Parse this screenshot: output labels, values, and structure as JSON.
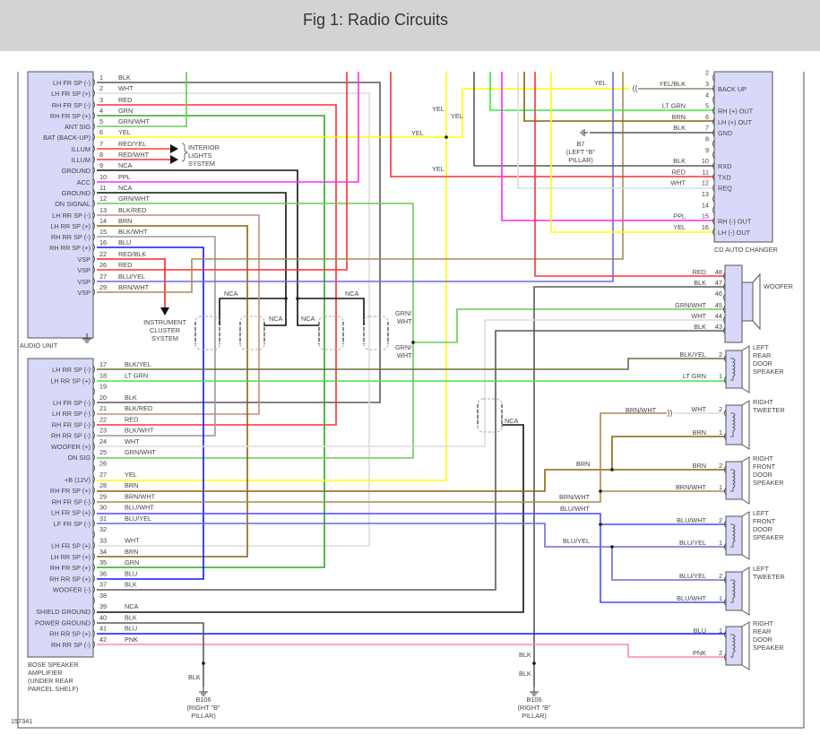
{
  "header": {
    "title": "Fig 1: Radio Circuits"
  },
  "figure_id": "157341",
  "audio_unit": {
    "label": "AUDIO UNIT",
    "pins": [
      {
        "num": "1",
        "name": "LH FR SP (-)",
        "color": "BLK"
      },
      {
        "num": "2",
        "name": "LH FR SP (+)",
        "color": "WHT"
      },
      {
        "num": "3",
        "name": "RH FR SP (-)",
        "color": "RED"
      },
      {
        "num": "4",
        "name": "RH FR SP (+)",
        "color": "GRN"
      },
      {
        "num": "5",
        "name": "ANT SIG",
        "color": "GRN/WHT"
      },
      {
        "num": "6",
        "name": "BAT (BACK-UP)",
        "color": "YEL"
      },
      {
        "num": "7",
        "name": "ILLUM",
        "color": "RED/YEL"
      },
      {
        "num": "8",
        "name": "ILLUM",
        "color": "RED/WHT"
      },
      {
        "num": "9",
        "name": "GROUND",
        "color": "NCA"
      },
      {
        "num": "10",
        "name": "ACC",
        "color": "PPL"
      },
      {
        "num": "11",
        "name": "GROUND",
        "color": "NCA"
      },
      {
        "num": "12",
        "name": "ON SIGNAL",
        "color": "GRN/WHT"
      },
      {
        "num": "13",
        "name": "LH RR SP (-)",
        "color": "BLK/RED"
      },
      {
        "num": "14",
        "name": "LH RR SP (+)",
        "color": "BRN"
      },
      {
        "num": "15",
        "name": "RH RR SP (-)",
        "color": "BLK/WHT"
      },
      {
        "num": "16",
        "name": "RH RR SP (+)",
        "color": "BLU"
      },
      {
        "num": "22",
        "name": "VSP",
        "color": "RED/BLK"
      },
      {
        "num": "26",
        "name": "VSP",
        "color": "RED"
      },
      {
        "num": "27",
        "name": "VSP",
        "color": "BLU/YEL"
      },
      {
        "num": "29",
        "name": "VSP",
        "color": "BRN/WHT"
      }
    ]
  },
  "amplifier": {
    "label_lines": [
      "BOSE SPEAKER",
      "AMPLIFIER",
      "(UNDER REAR",
      "PARCEL SHELF)"
    ],
    "pins": [
      {
        "num": "17",
        "name": "LH RR SP (-)",
        "color": "BLK/YEL"
      },
      {
        "num": "18",
        "name": "LH RR SP (+)",
        "color": "LT GRN"
      },
      {
        "num": "19",
        "name": "",
        "color": ""
      },
      {
        "num": "20",
        "name": "LH FR SP (-)",
        "color": "BLK"
      },
      {
        "num": "21",
        "name": "LH RR SP (-)",
        "color": "BLK/RED"
      },
      {
        "num": "22",
        "name": "RH FR SP (-)",
        "color": "RED"
      },
      {
        "num": "23",
        "name": "RH RR SP (-)",
        "color": "BLK/WHT"
      },
      {
        "num": "24",
        "name": "WOOFER (+)",
        "color": "WHT"
      },
      {
        "num": "25",
        "name": "ON SIG",
        "color": "GRN/WHT"
      },
      {
        "num": "26",
        "name": "",
        "color": ""
      },
      {
        "num": "27",
        "name": "+B (12V)",
        "color": "YEL"
      },
      {
        "num": "28",
        "name": "RH FR SP (+)",
        "color": "BRN"
      },
      {
        "num": "29",
        "name": "RH FR SP (-)",
        "color": "BRN/WHT"
      },
      {
        "num": "30",
        "name": "LH FR SP (+)",
        "color": "BLU/WHT"
      },
      {
        "num": "31",
        "name": "LF FR SP (-)",
        "color": "BLU/YEL"
      },
      {
        "num": "32",
        "name": "",
        "color": ""
      },
      {
        "num": "33",
        "name": "LH FR SP (+)",
        "color": "WHT"
      },
      {
        "num": "34",
        "name": "LH RR SP (+)",
        "color": "BRN"
      },
      {
        "num": "35",
        "name": "RH FR SP (+)",
        "color": "GRN"
      },
      {
        "num": "36",
        "name": "RH RR SP (+)",
        "color": "BLU"
      },
      {
        "num": "37",
        "name": "WOOFER (-)",
        "color": "BLK"
      },
      {
        "num": "38",
        "name": "",
        "color": ""
      },
      {
        "num": "39",
        "name": "SHIELD GROUND",
        "color": "NCA"
      },
      {
        "num": "40",
        "name": "POWER GROUND",
        "color": "BLK"
      },
      {
        "num": "41",
        "name": "RH RR SP (+)",
        "color": "BLU"
      },
      {
        "num": "42",
        "name": "RH RR SP (-)",
        "color": "PNK"
      }
    ]
  },
  "cd_changer": {
    "label": "CD AUTO CHANGER",
    "pins": [
      {
        "num": "2",
        "name": "",
        "color": ""
      },
      {
        "num": "3",
        "name": "BACK UP",
        "color": "YEL/BLK"
      },
      {
        "num": "4",
        "name": "",
        "color": ""
      },
      {
        "num": "5",
        "name": "RH (+) OUT",
        "color": "LT GRN"
      },
      {
        "num": "6",
        "name": "LH (+) OUT",
        "color": "BRN"
      },
      {
        "num": "7",
        "name": "GND",
        "color": "BLK"
      },
      {
        "num": "8",
        "name": "",
        "color": ""
      },
      {
        "num": "9",
        "name": "",
        "color": ""
      },
      {
        "num": "10",
        "name": "RXD",
        "color": "BLK"
      },
      {
        "num": "11",
        "name": "TXD",
        "color": "RED"
      },
      {
        "num": "12",
        "name": "REQ",
        "color": "WHT"
      },
      {
        "num": "13",
        "name": "",
        "color": ""
      },
      {
        "num": "14",
        "name": "",
        "color": ""
      },
      {
        "num": "15",
        "name": "RH (-) OUT",
        "color": "PPL"
      },
      {
        "num": "16",
        "name": "LH (-) OUT",
        "color": "YEL"
      }
    ]
  },
  "woofer": {
    "label": "WOOFER",
    "pins": [
      {
        "num": "48",
        "color": "RED"
      },
      {
        "num": "47",
        "color": "BLK"
      },
      {
        "num": "46",
        "color": ""
      },
      {
        "num": "45",
        "color": "GRN/WHT"
      },
      {
        "num": "44",
        "color": "WHT"
      },
      {
        "num": "43",
        "color": "BLK"
      }
    ]
  },
  "speakers": [
    {
      "name_lines": [
        "LEFT",
        "REAR",
        "DOOR",
        "SPEAKER"
      ],
      "pins": [
        {
          "num": "2",
          "color": "BLK/YEL"
        },
        {
          "num": "1",
          "color": "LT GRN"
        }
      ]
    },
    {
      "name_lines": [
        "RIGHT",
        "TWEETER"
      ],
      "pins": [
        {
          "num": "2",
          "color": "WHT"
        },
        {
          "num": "1",
          "color": "BRN"
        }
      ]
    },
    {
      "name_lines": [
        "RIGHT",
        "FRONT",
        "DOOR",
        "SPEAKER"
      ],
      "pins": [
        {
          "num": "2",
          "color": "BRN"
        },
        {
          "num": "1",
          "color": "BRN/WHT"
        }
      ]
    },
    {
      "name_lines": [
        "LEFT",
        "FRONT",
        "DOOR",
        "SPEAKER"
      ],
      "pins": [
        {
          "num": "2",
          "color": "BLU/WHT"
        },
        {
          "num": "1",
          "color": "BLU/YEL"
        }
      ]
    },
    {
      "name_lines": [
        "LEFT",
        "TWEETER"
      ],
      "pins": [
        {
          "num": "2",
          "color": "BLU/YEL"
        },
        {
          "num": "1",
          "color": "BLU/WHT"
        }
      ]
    },
    {
      "name_lines": [
        "RIGHT",
        "REAR",
        "DOOR",
        "SPEAKER"
      ],
      "pins": [
        {
          "num": "1",
          "color": "BLU"
        },
        {
          "num": "2",
          "color": "PNK"
        }
      ]
    }
  ],
  "labels": {
    "interior_lights": [
      "INTERIOR",
      "LIGHTS",
      "SYSTEM"
    ],
    "instrument_cluster": [
      "INSTRUMENT",
      "CLUSTER",
      "SYSTEM"
    ],
    "nca": "NCA",
    "yel": "YEL",
    "grn_wht": [
      "GRN/",
      "WHT"
    ],
    "brn": "BRN",
    "brn_wht": "BRN/WHT",
    "blu_wht": "BLU/WHT",
    "blu_yel": "BLU/YEL",
    "blk": "BLK",
    "b7": [
      "B7",
      "(LEFT \"B\"",
      "PILLAR)"
    ],
    "b106": [
      "B106",
      "(RIGHT \"B\"",
      "PILLAR)"
    ]
  },
  "wire_colors": {
    "BLK": "#5a5a5a",
    "WHT": "#dcdcdc",
    "RED": "#ff3030",
    "GRN": "#2eaa1e",
    "GRN/WHT": "#6cc95a",
    "YEL": "#ffff00",
    "RED/YEL": "#ff3a2a",
    "RED/WHT": "#ff3030",
    "NCA": "#111111",
    "PPL": "#ff2bff",
    "BLK/RED": "#c98a84",
    "BRN": "#8a6410",
    "BLK/WHT": "#9a9a9a",
    "BLU": "#0a18ff",
    "RED/BLK": "#ff2020",
    "BLU/YEL": "#6a6ae0",
    "BRN/WHT": "#a88c50",
    "LT GRN": "#3ee83e",
    "PNK": "#ff88a0",
    "BLK/YEL": "#6e6a40",
    "BLU/WHT": "#4a4aff",
    "YEL/BLK": "#8a8a70"
  },
  "colors": {
    "header_bg": "#d3d3d3",
    "box_fill": "#d8d8f8",
    "box_stroke": "#555555"
  }
}
